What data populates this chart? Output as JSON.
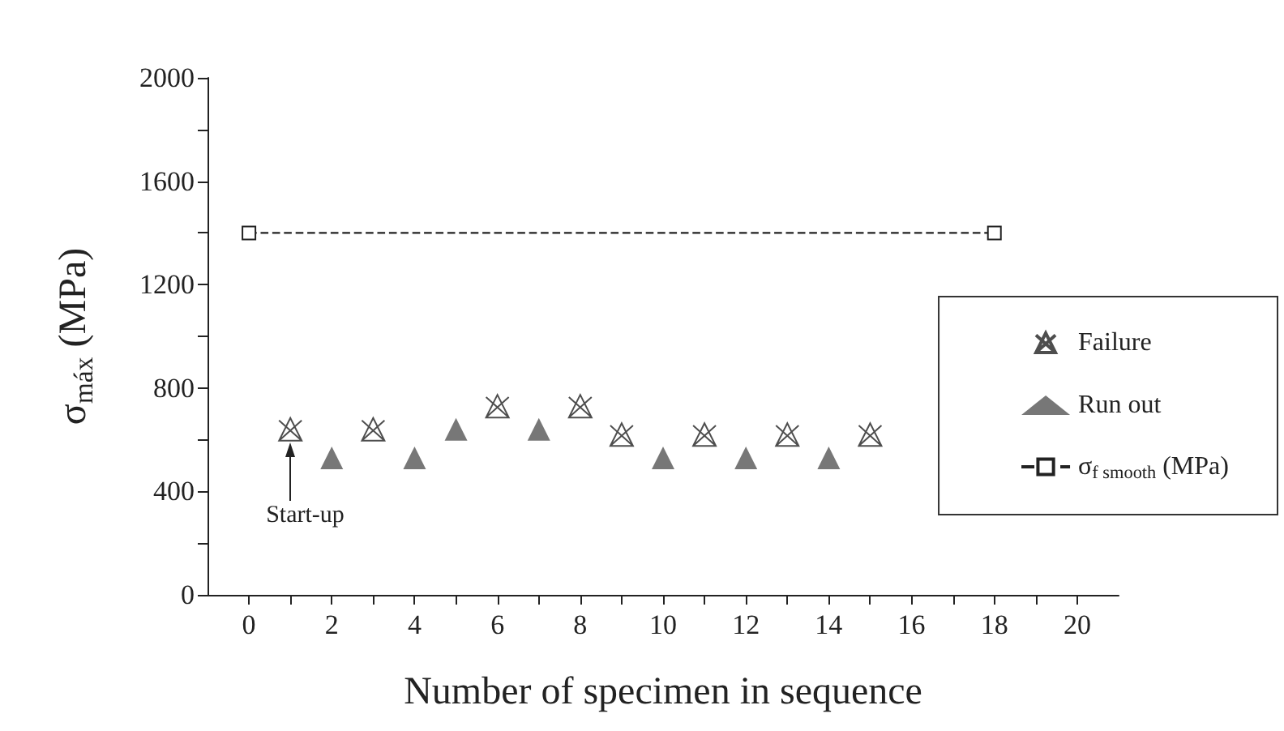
{
  "chart_data": {
    "type": "scatter",
    "xlabel": "Number of specimen in sequence",
    "ylabel": "σ$_{máx}$ (MPa)",
    "xlim": [
      -1,
      21
    ],
    "xticks": [
      0,
      2,
      4,
      6,
      8,
      10,
      12,
      14,
      16,
      18,
      20
    ],
    "ylim": [
      0,
      2000
    ],
    "yticks": [
      0,
      400,
      800,
      1200,
      1600,
      2000
    ],
    "grid": false,
    "legend": "right",
    "annotations": [
      {
        "text": "Start-up",
        "x": 1,
        "y": 640
      }
    ],
    "series": [
      {
        "name": "Failure",
        "marker": "cross",
        "color": "#222222",
        "x": [
          1,
          3,
          6,
          8,
          9,
          11,
          13,
          15
        ],
        "values": [
          640,
          640,
          730,
          730,
          620,
          620,
          620,
          620
        ]
      },
      {
        "name": "Run out",
        "marker": "triangle",
        "color": "#555555",
        "x": [
          2,
          4,
          5,
          7,
          10,
          12,
          14
        ],
        "values": [
          530,
          530,
          640,
          640,
          530,
          530,
          530
        ]
      },
      {
        "name": "σ$_{f smooth}$ (MPa)",
        "type": "line",
        "marker": "square",
        "line_style": "dashed",
        "color": "#222222",
        "x": [
          0,
          18
        ],
        "values": [
          1400,
          1400
        ]
      }
    ]
  }
}
